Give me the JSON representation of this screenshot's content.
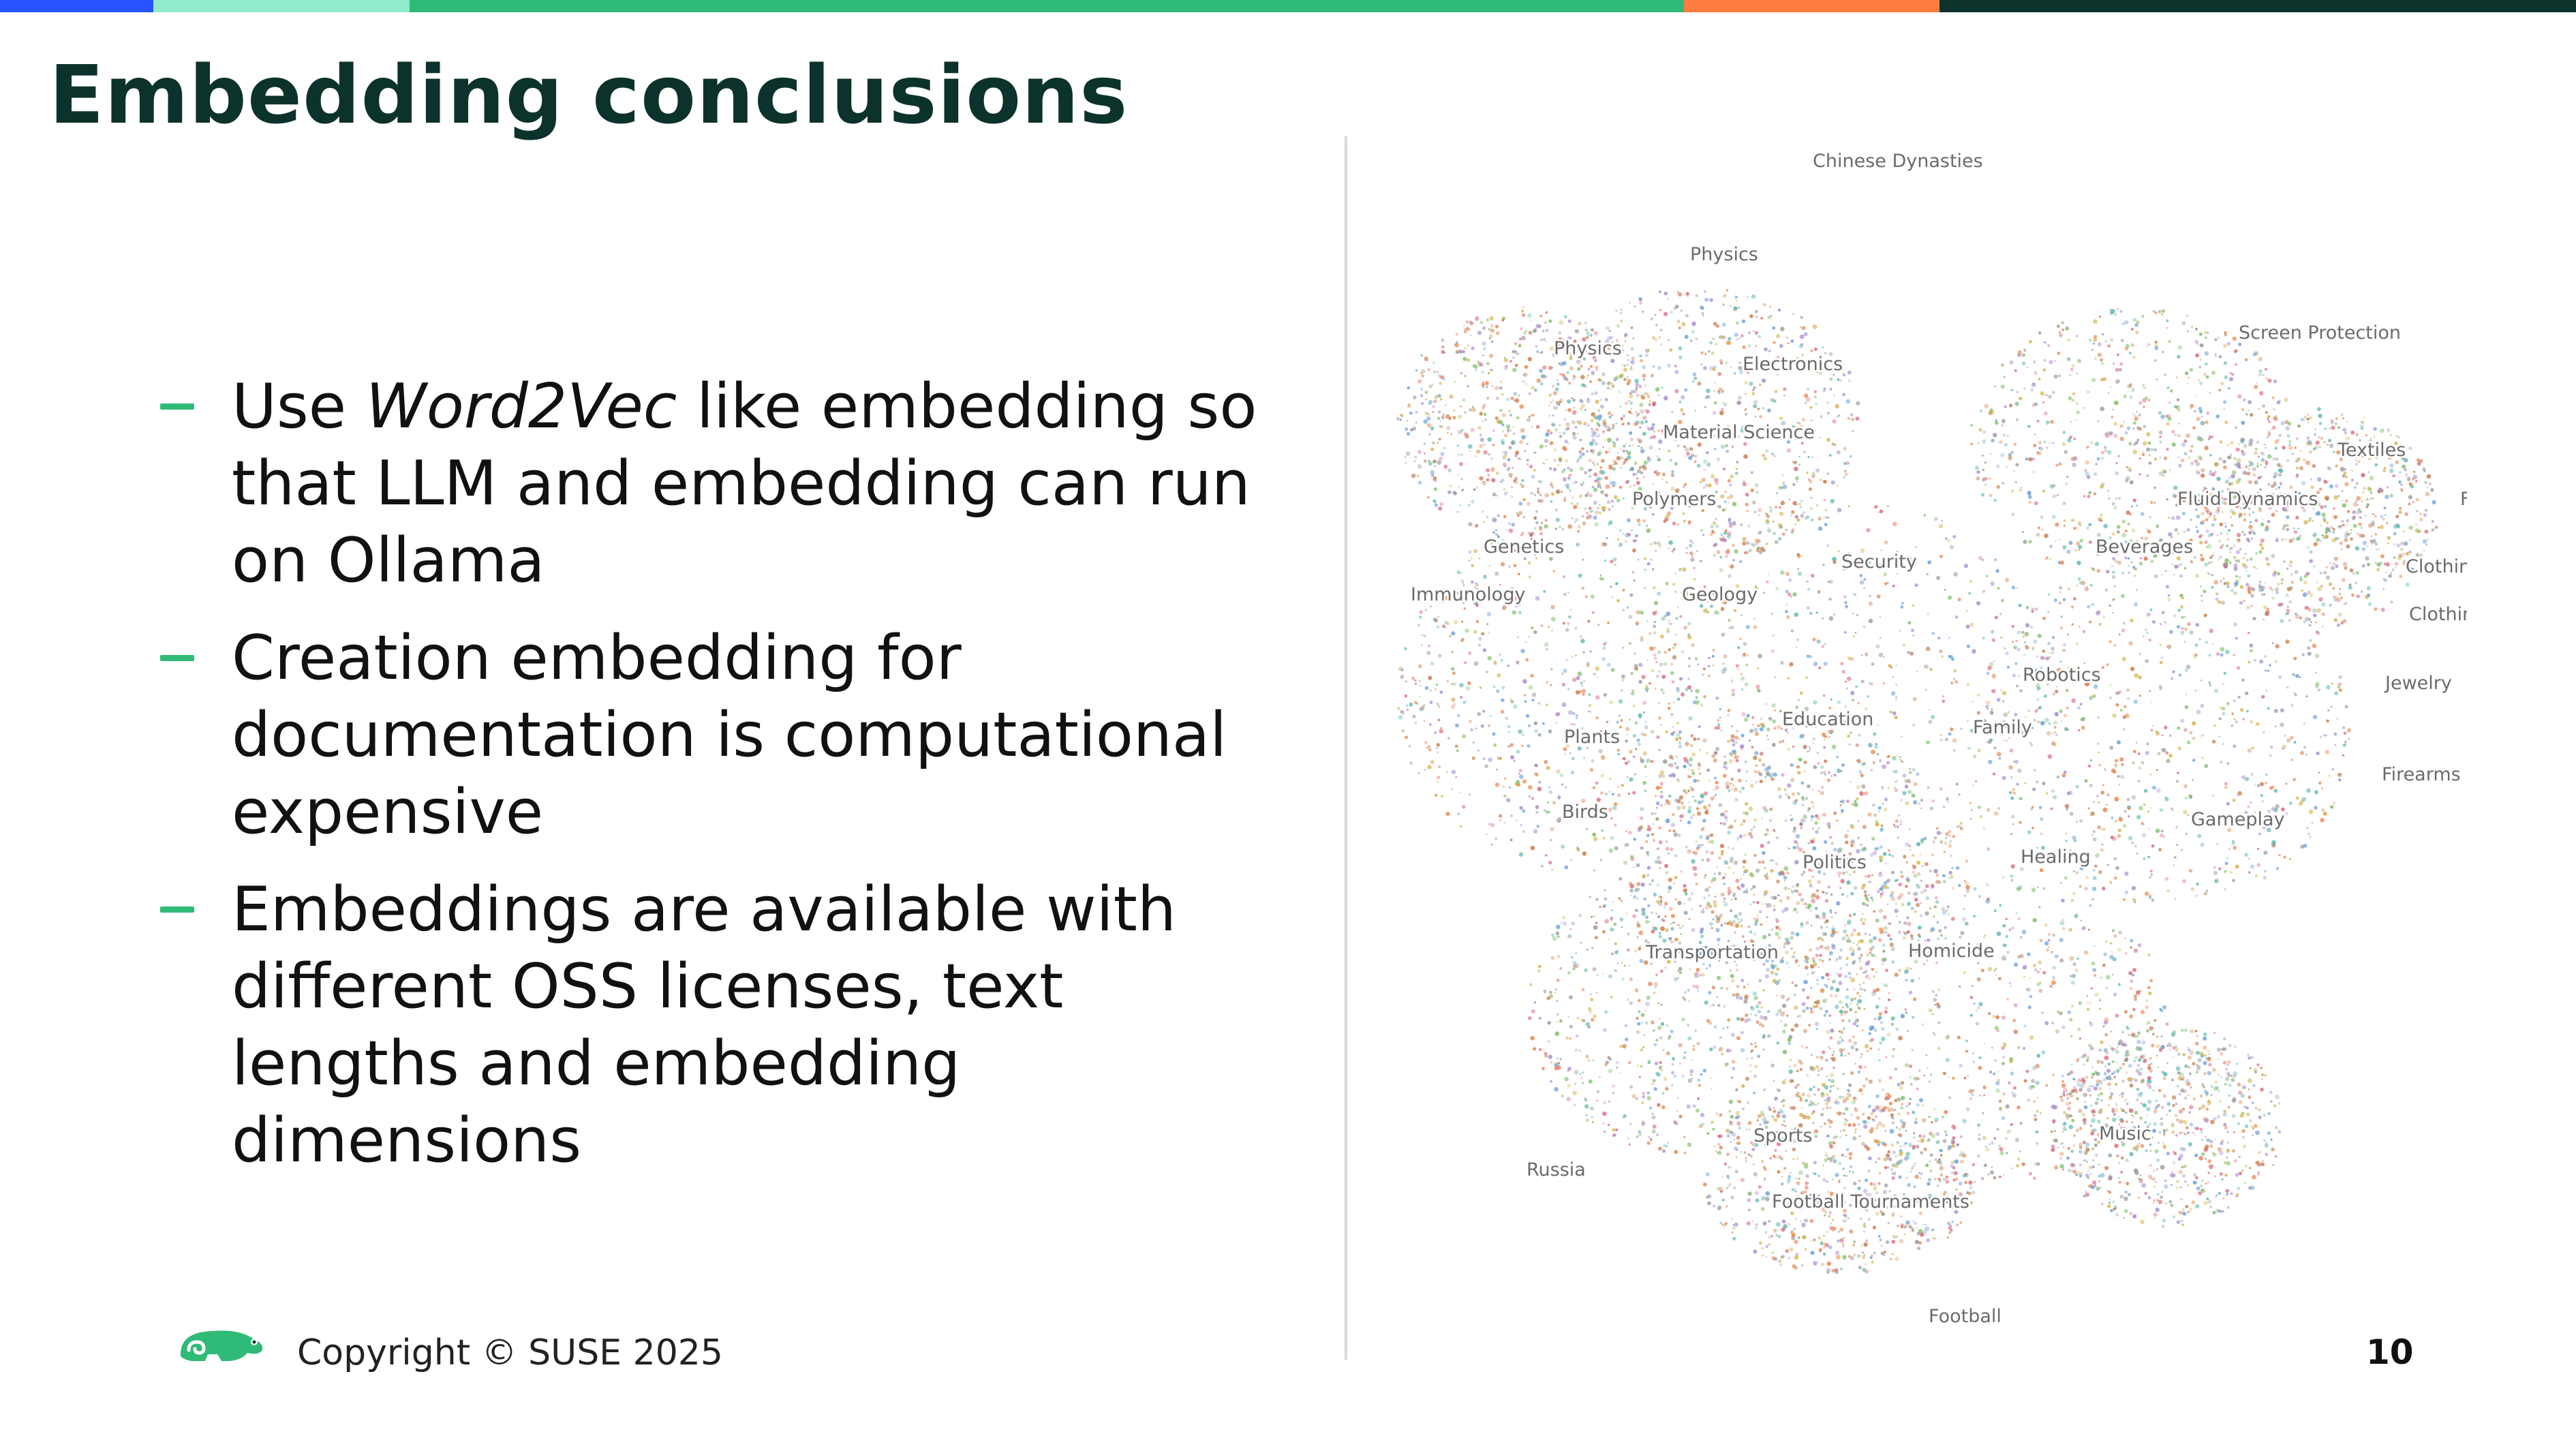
{
  "slide": {
    "title": "Embedding conclusions",
    "bullets": [
      {
        "pre": "Use ",
        "em": "Word2Vec",
        "post": " like embedding so that LLM and embedding can run on Ollama"
      },
      {
        "pre": "Creation embedding for documentation is computational expensive",
        "em": "",
        "post": ""
      },
      {
        "pre": "Embeddings are available with different OSS licenses, text lengths and embedding dimensions",
        "em": "",
        "post": ""
      }
    ],
    "copyright": "Copyright © SUSE 2025",
    "page_number": "10"
  },
  "colors": {
    "title": "#0c322c",
    "accent": "#30ba78",
    "topbar": [
      "#2453ff",
      "#90ebcd",
      "#30ba78",
      "#fe7c3f",
      "#0c322c"
    ]
  },
  "icons": {
    "logo": "suse-chameleon-icon"
  },
  "map_labels": [
    "Chinese Dynasties",
    "Physics",
    "Physics",
    "Electronics",
    "Screen Protection",
    "Material Science",
    "Textiles",
    "Polymers",
    "Fluid Dynamics",
    "Footwea",
    "Genetics",
    "Beverages",
    "Security",
    "Clothing",
    "Immunology",
    "Geology",
    "Clothing Sizing",
    "Robotics",
    "Jewelry",
    "Education",
    "Family",
    "Plants",
    "Firearms",
    "Birds",
    "Gameplay",
    "Healing",
    "Politics",
    "Transportation",
    "Homicide",
    "Sports",
    "Music",
    "Russia",
    "Football Tournaments",
    "Football"
  ]
}
